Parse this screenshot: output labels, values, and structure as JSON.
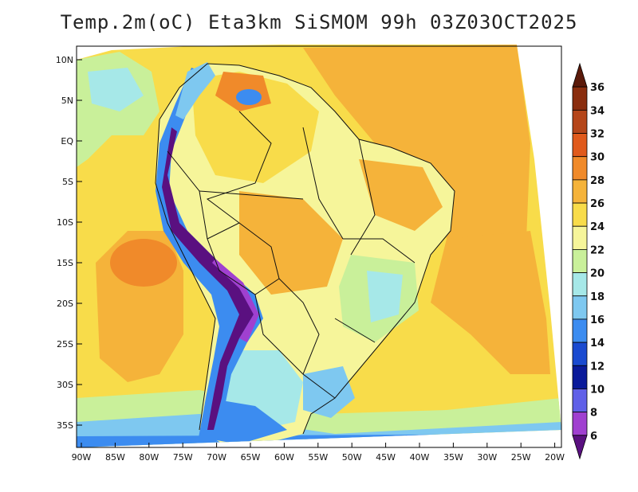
{
  "title": "Temp.2m(oC) Eta3km SiSMOM 99h 03Z03OCT2025",
  "map": {
    "lat_ticks": [
      "10N",
      "5N",
      "EQ",
      "5S",
      "10S",
      "15S",
      "20S",
      "25S",
      "30S",
      "35S"
    ],
    "lon_ticks": [
      "90W",
      "85W",
      "80W",
      "75W",
      "70W",
      "65W",
      "60W",
      "55W",
      "50W",
      "45W",
      "40W",
      "35W",
      "30W",
      "25W",
      "20W"
    ],
    "lon_range": [
      -90,
      -20
    ],
    "lat_range": [
      -38,
      11
    ]
  },
  "colorbar": {
    "labels": [
      "36",
      "34",
      "32",
      "30",
      "28",
      "26",
      "24",
      "22",
      "20",
      "18",
      "16",
      "14",
      "12",
      "10",
      "8",
      "6"
    ],
    "colors": [
      "#5b1a0a",
      "#8a2d0e",
      "#b5461a",
      "#e05a1c",
      "#f08a2a",
      "#f5b33a",
      "#f8dc4a",
      "#f6f59a",
      "#c9f09a",
      "#a6e8e8",
      "#7ec8f0",
      "#3c8cf0",
      "#1a4ad0",
      "#0a1a9a",
      "#6060e8",
      "#a040d0",
      "#5a1080"
    ]
  }
}
